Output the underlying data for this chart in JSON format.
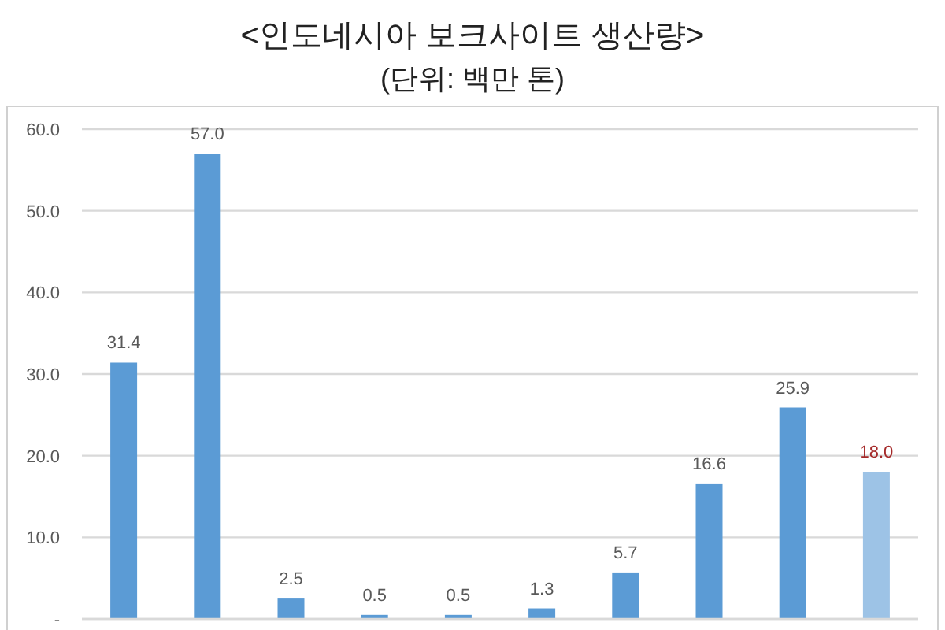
{
  "chart_data": {
    "type": "bar",
    "title": "<인도네시아 보크사이트 생산량>",
    "subtitle": "(단위: 백만 톤)",
    "categories": [
      null,
      null,
      null,
      null,
      null,
      null,
      null,
      null,
      null,
      null
    ],
    "values": [
      31.4,
      57.0,
      2.5,
      0.5,
      0.5,
      1.3,
      5.7,
      16.6,
      25.9,
      18.0
    ],
    "colors": [
      "#5b9bd5",
      "#5b9bd5",
      "#5b9bd5",
      "#5b9bd5",
      "#5b9bd5",
      "#5b9bd5",
      "#5b9bd5",
      "#5b9bd5",
      "#5b9bd5",
      "#9dc3e6"
    ],
    "value_labels": [
      "31.4",
      "57.0",
      "2.5",
      "0.5",
      "0.5",
      "1.3",
      "5.7",
      "16.6",
      "25.9",
      "18.0"
    ],
    "ylim": [
      0,
      60
    ],
    "yticks": [
      {
        "value": 0,
        "label": "-"
      },
      {
        "value": 10,
        "label": "10.0"
      },
      {
        "value": 20,
        "label": "20.0"
      },
      {
        "value": 30,
        "label": "30.0"
      },
      {
        "value": 40,
        "label": "40.0"
      },
      {
        "value": 50,
        "label": "50.0"
      },
      {
        "value": 60,
        "label": "60.0"
      }
    ],
    "grid": "y"
  }
}
